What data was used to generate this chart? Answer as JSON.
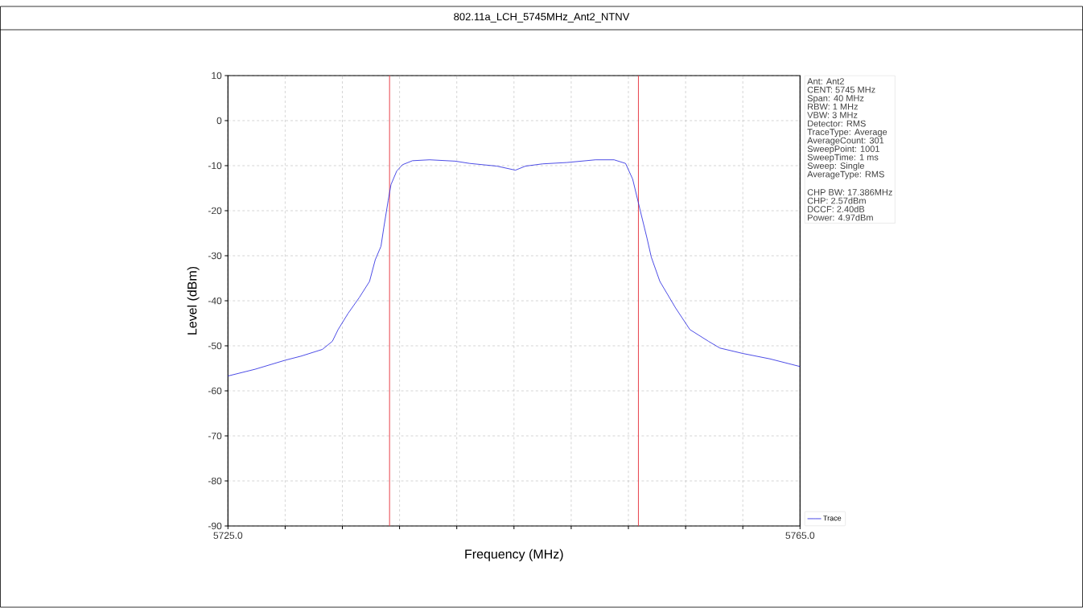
{
  "chart_data": {
    "type": "line",
    "title": "802.11a_LCH_5745MHz_Ant2_NTNV",
    "xlabel": "Frequency (MHz)",
    "ylabel": "Level (dBm)",
    "xlim": [
      5725,
      5765
    ],
    "ylim": [
      -90,
      10
    ],
    "xticks": [
      {
        "value": 5725,
        "label": "5725.0"
      },
      {
        "value": 5729,
        "label": null
      },
      {
        "value": 5733,
        "label": null
      },
      {
        "value": 5737,
        "label": null
      },
      {
        "value": 5741,
        "label": null
      },
      {
        "value": 5745,
        "label": null
      },
      {
        "value": 5749,
        "label": null
      },
      {
        "value": 5753,
        "label": null
      },
      {
        "value": 5757,
        "label": null
      },
      {
        "value": 5761,
        "label": null
      },
      {
        "value": 5765,
        "label": "5765.0"
      }
    ],
    "yticks": [
      -90,
      -80,
      -70,
      -60,
      -50,
      -40,
      -30,
      -20,
      -10,
      0,
      10
    ],
    "grid": true,
    "legend": "bottom right",
    "series": [
      {
        "name": "Trace",
        "color": "#1f1fe0",
        "x": [
          5725,
          5726.9,
          5729,
          5730.1,
          5731.6,
          5732.3,
          5732.7,
          5733.4,
          5734.2,
          5734.9,
          5735.3,
          5735.7,
          5735.9,
          5736.2,
          5736.4,
          5736.8,
          5737.2,
          5737.9,
          5739.1,
          5740.9,
          5741.9,
          5743.8,
          5745.1,
          5745.8,
          5747,
          5748.7,
          5750.7,
          5752,
          5752.8,
          5753.3,
          5753.8,
          5754.3,
          5754.6,
          5755.2,
          5756.3,
          5757.3,
          5758.6,
          5759.4,
          5761,
          5762.9,
          5765
        ],
        "values": [
          -56.7,
          -55.2,
          -53.2,
          -52.3,
          -50.8,
          -49,
          -46.4,
          -42.8,
          -39.2,
          -35.7,
          -30.9,
          -27.9,
          -23.7,
          -17.8,
          -14.2,
          -11.2,
          -9.8,
          -8.9,
          -8.7,
          -9,
          -9.5,
          -10.1,
          -11,
          -10.1,
          -9.6,
          -9.3,
          -8.7,
          -8.7,
          -9.5,
          -13,
          -19.6,
          -26.1,
          -30.3,
          -35.7,
          -41.6,
          -46.4,
          -49,
          -50.5,
          -51.7,
          -52.9,
          -54.6
        ]
      }
    ],
    "ref_lines": [
      {
        "axis": "x",
        "value": 5736.3,
        "color": "#e8414b"
      },
      {
        "axis": "x",
        "value": 5753.7,
        "color": "#e8414b"
      }
    ],
    "annotations": [
      "Ant: Ant2",
      "CENT: 5745 MHz",
      "Span: 40 MHz",
      "RBW: 1 MHz",
      "VBW: 3 MHz",
      "Detector: RMS",
      "TraceType: Average",
      "AverageCount: 301",
      "SweepPoint: 1001",
      "SweepTime: 1 ms",
      "Sweep: Single",
      "AverageType: RMS",
      "CHP BW: 17.386MHz",
      "CHP: 2.57dBm",
      "DCCF: 2.40dB",
      "Power: 4.97dBm"
    ]
  }
}
